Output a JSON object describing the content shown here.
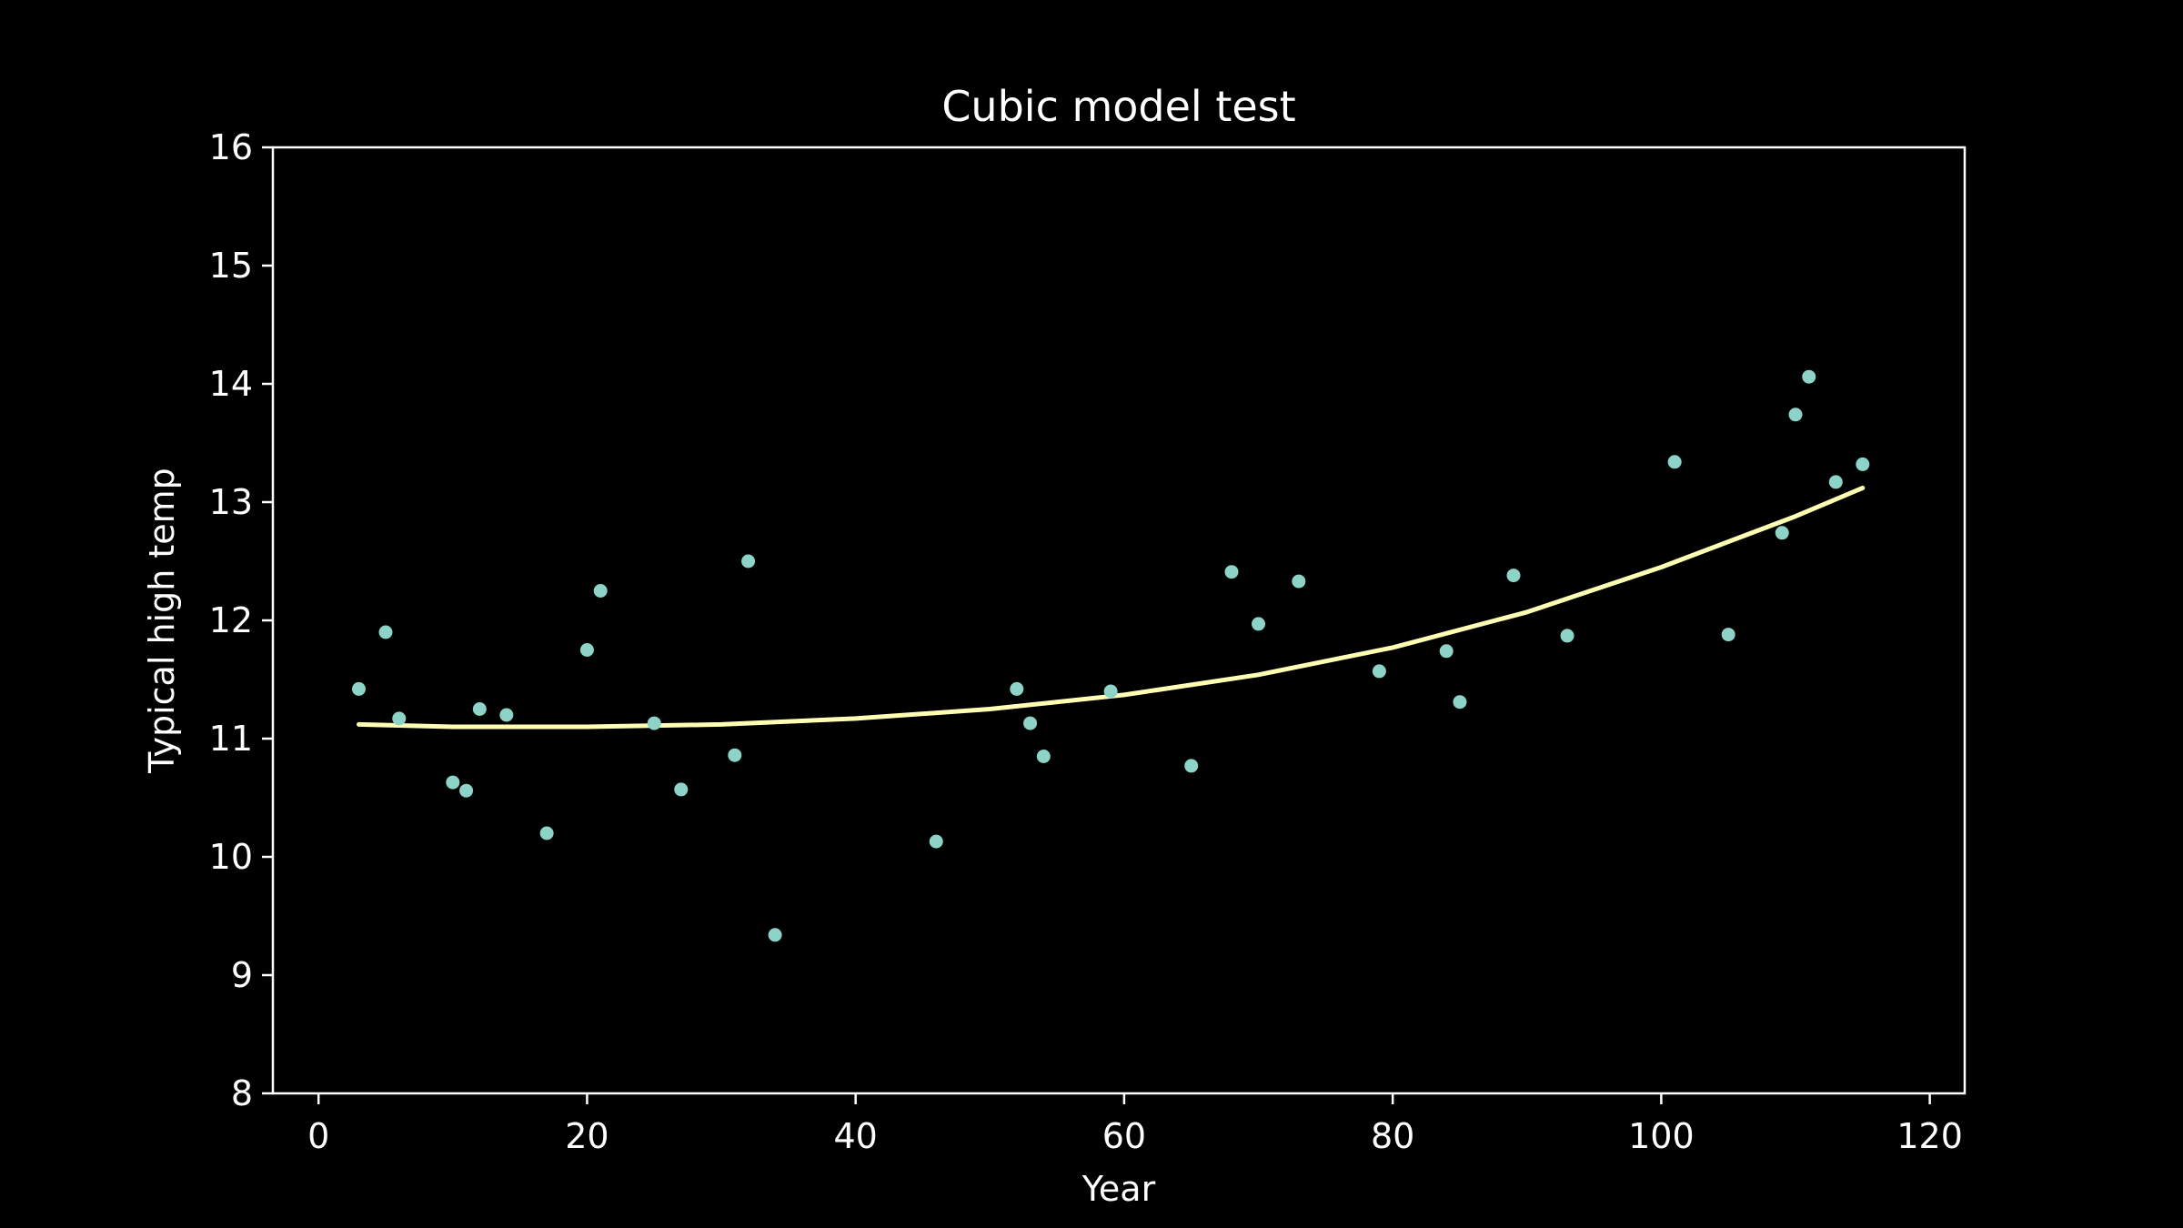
{
  "colors": {
    "background": "#000000",
    "axes": "#ffffff",
    "text": "#ffffff",
    "points": "#8dd3c7",
    "fit_line": "#ffffb3"
  },
  "chart_data": {
    "type": "scatter",
    "title": "Cubic model test",
    "xlabel": "Year",
    "ylabel": "Typical high temp",
    "xlim": [
      -3.4,
      122.6
    ],
    "ylim": [
      8,
      16
    ],
    "x_ticks": [
      0,
      20,
      40,
      60,
      80,
      100,
      120
    ],
    "y_ticks": [
      8,
      9,
      10,
      11,
      12,
      13,
      14,
      15,
      16
    ],
    "grid": false,
    "legend": "none",
    "series": [
      {
        "kind": "points",
        "x": [
          3,
          5,
          6,
          10,
          11,
          12,
          14,
          17,
          20,
          21,
          25,
          27,
          31,
          32,
          34,
          46,
          52,
          53,
          54,
          59,
          65,
          68,
          70,
          73,
          79,
          84,
          85,
          89,
          93,
          101,
          105,
          109,
          110,
          111,
          113,
          115
        ],
        "y": [
          11.42,
          11.9,
          11.17,
          10.63,
          10.56,
          11.25,
          11.2,
          10.2,
          11.75,
          12.25,
          11.13,
          10.57,
          10.86,
          12.5,
          9.34,
          10.13,
          11.42,
          11.13,
          10.85,
          11.4,
          10.77,
          12.41,
          11.97,
          12.33,
          11.57,
          11.74,
          11.31,
          12.38,
          11.87,
          13.34,
          11.88,
          12.74,
          13.74,
          14.06,
          13.17,
          13.32
        ]
      },
      {
        "kind": "line",
        "x": [
          3,
          10,
          20,
          30,
          40,
          50,
          60,
          70,
          80,
          90,
          100,
          110,
          115
        ],
        "y": [
          11.12,
          11.1,
          11.1,
          11.12,
          11.17,
          11.25,
          11.37,
          11.54,
          11.77,
          12.07,
          12.45,
          12.88,
          13.12
        ]
      }
    ]
  }
}
